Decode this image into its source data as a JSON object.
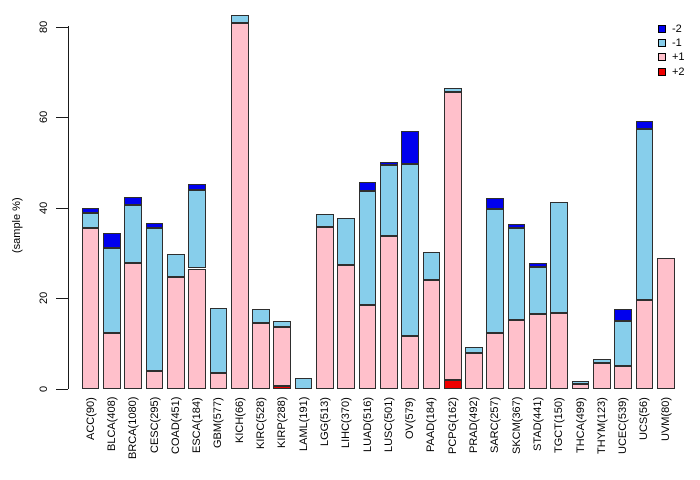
{
  "chart_data": {
    "type": "bar",
    "stacked": true,
    "title": "",
    "xlabel": "",
    "ylabel": "(sample %)",
    "ylim": [
      0,
      84
    ],
    "yticks": [
      0,
      20,
      40,
      60,
      80
    ],
    "grid": false,
    "legend_position": "top-right",
    "bar_fill_order_bottom_to_top": [
      "+2",
      "+1",
      "-1",
      "-2"
    ],
    "categories": [
      "ACC(90)",
      "BLCA(408)",
      "BRCA(1080)",
      "CESC(295)",
      "COAD(451)",
      "ESCA(184)",
      "GBM(577)",
      "KICH(66)",
      "KIRC(528)",
      "KIRP(288)",
      "LAML(191)",
      "LGG(513)",
      "LIHC(370)",
      "LUAD(516)",
      "LUSC(501)",
      "OV(579)",
      "PAAD(184)",
      "PCPG(162)",
      "PRAD(492)",
      "SARC(257)",
      "SKCM(367)",
      "STAD(441)",
      "TGCT(150)",
      "THCA(499)",
      "THYM(123)",
      "UCEC(539)",
      "UCS(56)",
      "UVM(80)"
    ],
    "series": [
      {
        "name": "+2",
        "color": "#EE0000",
        "values": [
          0,
          0,
          0,
          0,
          0,
          0,
          0,
          0,
          0,
          0.7,
          0,
          0,
          0,
          0,
          0,
          0,
          0,
          2.0,
          0,
          0,
          0,
          0,
          0,
          0,
          0,
          0,
          0,
          0
        ]
      },
      {
        "name": "+1",
        "color": "#FFC0CB",
        "values": [
          35.6,
          12.4,
          27.8,
          4.0,
          24.7,
          26.6,
          3.5,
          80.8,
          14.6,
          13.0,
          0,
          35.8,
          27.4,
          18.5,
          33.8,
          11.7,
          24.1,
          63.6,
          8.0,
          12.4,
          15.2,
          16.5,
          16.7,
          1.1,
          5.7,
          5.1,
          19.6,
          29.0
        ]
      },
      {
        "name": "-1",
        "color": "#87CEEB",
        "values": [
          3.3,
          18.8,
          12.9,
          31.6,
          5.2,
          17.4,
          14.4,
          1.7,
          3.0,
          1.3,
          2.5,
          2.9,
          10.3,
          25.2,
          15.6,
          37.9,
          6.1,
          0.9,
          1.3,
          27.4,
          20.4,
          10.4,
          24.6,
          0.6,
          1.0,
          9.9,
          37.7,
          0
        ]
      },
      {
        "name": "-2",
        "color": "#0000EE",
        "values": [
          1.1,
          3.3,
          1.7,
          1.0,
          0,
          1.2,
          0,
          0,
          0,
          0,
          0,
          0,
          0,
          2.0,
          0.8,
          7.4,
          0,
          0,
          0,
          2.3,
          0.9,
          1.0,
          0,
          0,
          0,
          2.6,
          1.8,
          0
        ]
      }
    ],
    "legend": [
      {
        "label": "-2",
        "color": "#0000EE"
      },
      {
        "label": "-1",
        "color": "#87CEEB"
      },
      {
        "label": "+1",
        "color": "#FFC0CB"
      },
      {
        "label": "+2",
        "color": "#EE0000"
      }
    ]
  }
}
